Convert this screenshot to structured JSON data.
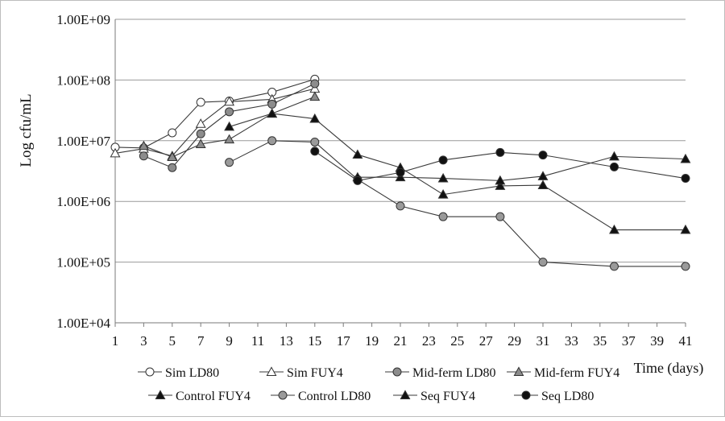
{
  "chart_data": {
    "type": "line",
    "y_scale": "log",
    "ylabel": "Log cfu/mL",
    "xlabel": "Time (days)",
    "ylim": [
      10000,
      1000000000
    ],
    "xlim": [
      1,
      41
    ],
    "y_tick_values": [
      10000,
      100000,
      1000000,
      10000000,
      100000000,
      1000000000
    ],
    "y_tick_labels": [
      "1.00E+04",
      "1.00E+05",
      "1.00E+06",
      "1.00E+07",
      "1.00E+08",
      "1.00E+09"
    ],
    "x_ticks": [
      1,
      3,
      5,
      7,
      9,
      11,
      13,
      15,
      17,
      19,
      21,
      23,
      25,
      27,
      29,
      31,
      33,
      35,
      37,
      39,
      41
    ],
    "grid": "horizontal",
    "legend_position": "bottom",
    "series": [
      {
        "name": "Sim LD80",
        "marker": "circle",
        "fill": "#ffffff",
        "x": [
          1,
          3,
          5,
          7,
          9,
          12,
          15
        ],
        "y": [
          7800000,
          7600000,
          13500000,
          43000000,
          45000000,
          63000000,
          103000000
        ]
      },
      {
        "name": "Sim FUY4",
        "marker": "triangle",
        "fill": "#ffffff",
        "x": [
          1,
          3,
          5,
          7,
          9,
          12,
          15
        ],
        "y": [
          6200000,
          7400000,
          5600000,
          19000000,
          44000000,
          48000000,
          72000000
        ]
      },
      {
        "name": "Mid-ferm LD80",
        "marker": "circle",
        "fill": "#8c8c8c",
        "x": [
          3,
          5,
          7,
          9,
          12,
          15
        ],
        "y": [
          5600000,
          3600000,
          13000000,
          30000000,
          40000000,
          87000000
        ]
      },
      {
        "name": "Mid-ferm FUY4",
        "marker": "triangle",
        "fill": "#8c8c8c",
        "x": [
          3,
          5,
          7,
          9,
          12,
          15
        ],
        "y": [
          8200000,
          5400000,
          8800000,
          10500000,
          28000000,
          53000000
        ]
      },
      {
        "name": "Control FUY4",
        "marker": "triangle",
        "fill": "#111111",
        "x": [
          9,
          12,
          15,
          18,
          21,
          24,
          28,
          31,
          36,
          41
        ],
        "y": [
          17000000,
          28000000,
          23000000,
          5900000,
          3600000,
          1300000,
          1800000,
          1850000,
          340000,
          340000
        ]
      },
      {
        "name": "Control LD80",
        "marker": "circle",
        "fill": "#9a9a9a",
        "x": [
          9,
          12,
          15,
          18,
          21,
          24,
          28,
          31,
          36,
          41
        ],
        "y": [
          4400000,
          10000000,
          9500000,
          2300000,
          840000,
          560000,
          560000,
          100000,
          85000,
          85000
        ]
      },
      {
        "name": "Seq FUY4",
        "marker": "triangle",
        "fill": "#111111",
        "x": [
          18,
          21,
          24,
          28,
          31,
          36,
          41
        ],
        "y": [
          2500000,
          2500000,
          2400000,
          2200000,
          2600000,
          5500000,
          5000000
        ]
      },
      {
        "name": "Seq LD80",
        "marker": "circle",
        "fill": "#111111",
        "x": [
          15,
          18,
          21,
          24,
          28,
          31,
          36,
          41
        ],
        "y": [
          6700000,
          2200000,
          3000000,
          4800000,
          6400000,
          5800000,
          3700000,
          2400000
        ]
      }
    ]
  }
}
